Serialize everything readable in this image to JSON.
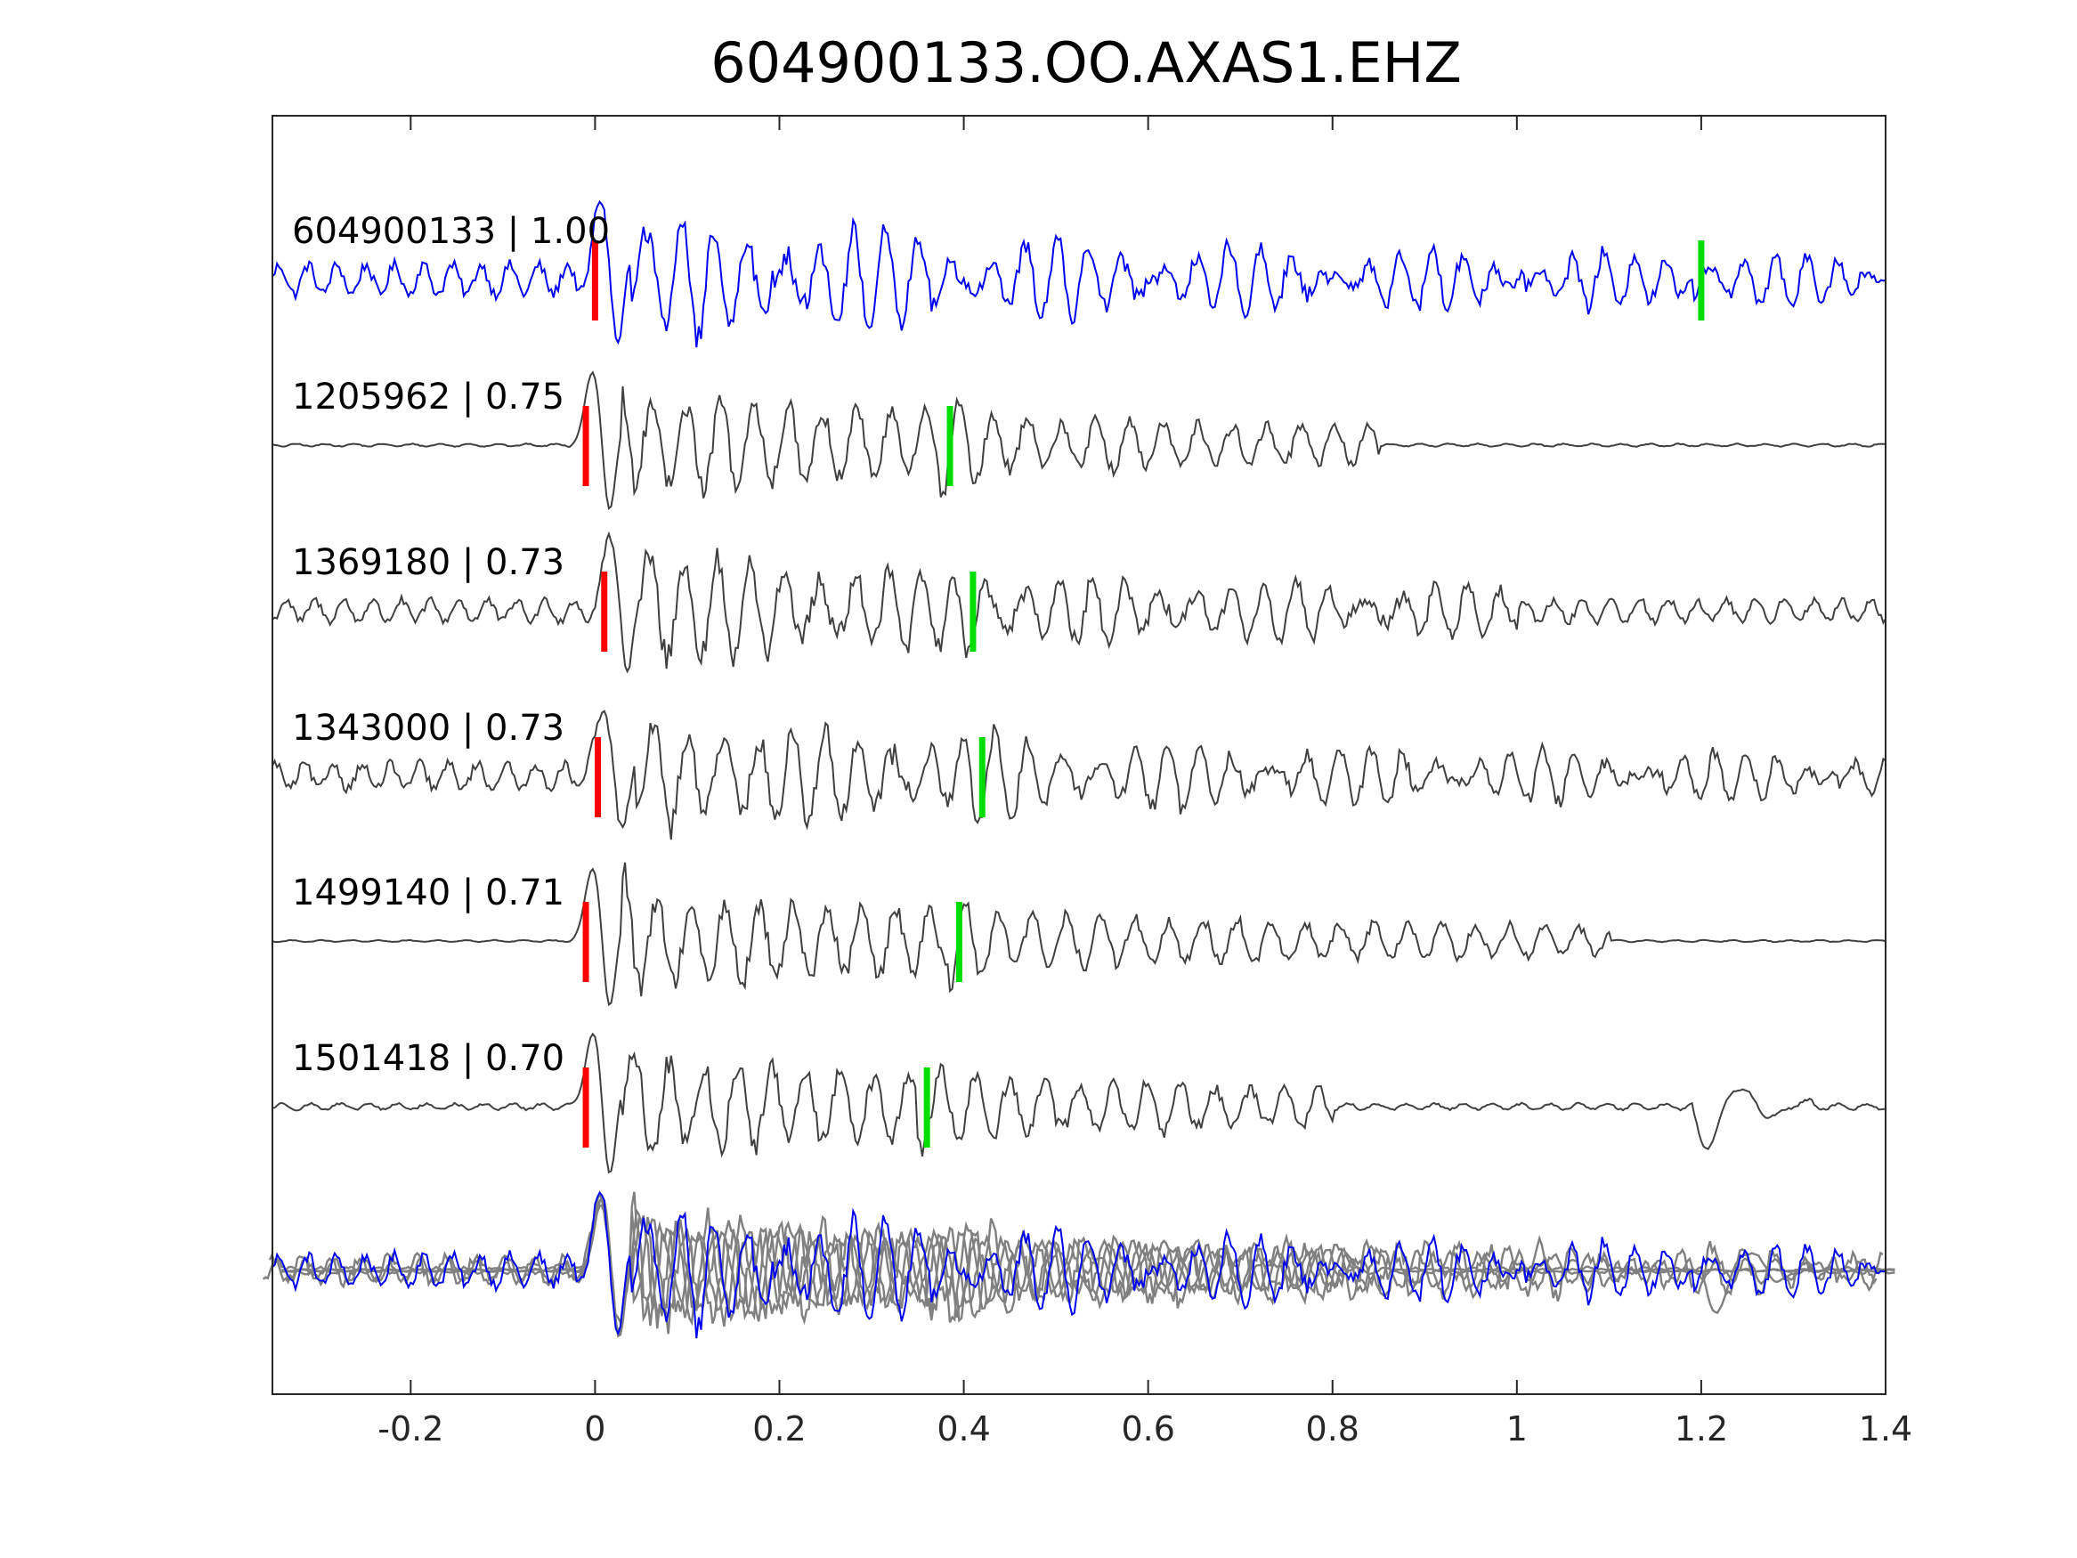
{
  "chart_data": {
    "type": "line",
    "title": "604900133.OO.AXAS1.EHZ",
    "xlabel": "",
    "ylabel": "",
    "xlim": [
      -0.35,
      1.4
    ],
    "xticks": [
      -0.2,
      0,
      0.2,
      0.4,
      0.6,
      0.8,
      1,
      1.2,
      1.4
    ],
    "xtick_labels": [
      "-0.2",
      "0",
      "0.2",
      "0.4",
      "0.6",
      "0.8",
      "1",
      "1.2",
      "1.4"
    ],
    "yticks_visible": false,
    "grid": false,
    "colors": {
      "template": "#0000ee",
      "neighbor": "#404040",
      "stack_neighbor": "#808080",
      "p_pick": "#ff0000",
      "s_pick": "#00dd00",
      "axes": "#262626"
    },
    "traces": [
      {
        "id": "604900133",
        "cc": "1.00",
        "label": "604900133 | 1.00",
        "role": "template",
        "p_pick": 0.0,
        "s_pick": 1.2,
        "noise": 0.35,
        "coda_end": 1.4,
        "late_event": null
      },
      {
        "id": "1205962",
        "cc": "0.75",
        "label": "1205962 | 0.75",
        "role": "neighbor",
        "p_pick": -0.01,
        "s_pick": 0.385,
        "noise": 0.03,
        "coda_end": 0.85,
        "late_event": null
      },
      {
        "id": "1369180",
        "cc": "0.73",
        "label": "1369180 | 0.73",
        "role": "neighbor",
        "p_pick": 0.01,
        "s_pick": 0.41,
        "noise": 0.25,
        "coda_end": 1.0,
        "late_event": null
      },
      {
        "id": "1343000",
        "cc": "0.73",
        "label": "1343000 | 0.73",
        "role": "neighbor",
        "p_pick": 0.003,
        "s_pick": 0.42,
        "noise": 0.3,
        "coda_end": 1.4,
        "late_event": null
      },
      {
        "id": "1499140",
        "cc": "0.71",
        "label": "1499140 | 0.71",
        "role": "neighbor",
        "p_pick": -0.01,
        "s_pick": 0.395,
        "noise": 0.02,
        "coda_end": 1.1,
        "late_event": null
      },
      {
        "id": "1501418",
        "cc": "0.70",
        "label": "1501418 | 0.70",
        "role": "neighbor",
        "p_pick": -0.01,
        "s_pick": 0.36,
        "noise": 0.07,
        "coda_end": 0.8,
        "late_event": 1.2
      }
    ],
    "stack": {
      "role": "overlay",
      "includes": [
        "604900133",
        "1205962",
        "1369180",
        "1343000",
        "1499140",
        "1501418"
      ]
    }
  }
}
